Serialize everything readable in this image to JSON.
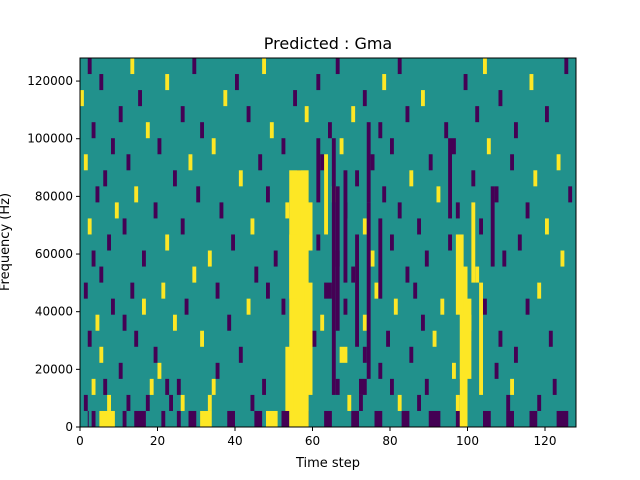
{
  "chart_data": {
    "type": "heatmap",
    "title": "Predicted : Gma",
    "xlabel": "Time step",
    "ylabel": "Frequency (Hz)",
    "xlim": [
      0,
      128
    ],
    "ylim": [
      0,
      128000
    ],
    "x_ticks": [
      0,
      20,
      40,
      60,
      80,
      100,
      120
    ],
    "x_tick_labels": [
      "0",
      "20",
      "40",
      "60",
      "80",
      "100",
      "120"
    ],
    "y_ticks": [
      0,
      20000,
      40000,
      60000,
      80000,
      100000,
      120000
    ],
    "y_tick_labels": [
      "0",
      "20000",
      "40000",
      "60000",
      "80000",
      "100000",
      "120000"
    ],
    "levels": {
      "background": "#21918c",
      "low": "#440154",
      "high": "#fde725"
    },
    "legend": "none",
    "grid": false,
    "cells": [
      [
        2,
        0,
        2,
        1,
        -1
      ],
      [
        3,
        0,
        4,
        1,
        -1
      ],
      [
        5,
        0,
        9,
        1,
        1
      ],
      [
        11,
        0,
        12,
        1,
        -1
      ],
      [
        14,
        0,
        17,
        1,
        -1
      ],
      [
        21,
        0,
        22,
        1,
        -1
      ],
      [
        25,
        0,
        26,
        1,
        -1
      ],
      [
        28,
        0,
        30,
        1,
        -1
      ],
      [
        31,
        0,
        34,
        1,
        1
      ],
      [
        38,
        0,
        40,
        1,
        -1
      ],
      [
        45,
        0,
        47,
        1,
        -1
      ],
      [
        48,
        0,
        51,
        1,
        1
      ],
      [
        52,
        0,
        54,
        1,
        -1
      ],
      [
        57,
        0,
        59,
        1,
        -1
      ],
      [
        63,
        0,
        65,
        1,
        -1
      ],
      [
        70,
        0,
        72,
        1,
        -1
      ],
      [
        76,
        0,
        78,
        1,
        -1
      ],
      [
        83,
        0,
        85,
        1,
        -1
      ],
      [
        90,
        0,
        93,
        1,
        -1
      ],
      [
        97,
        0,
        99,
        1,
        -1
      ],
      [
        104,
        0,
        106,
        1,
        -1
      ],
      [
        110,
        0,
        112,
        1,
        -1
      ],
      [
        116,
        0,
        118,
        1,
        -1
      ],
      [
        123,
        0,
        126,
        1,
        -1
      ],
      [
        1,
        1,
        2,
        2,
        -1
      ],
      [
        7,
        1,
        8,
        2,
        1
      ],
      [
        12,
        1,
        13,
        2,
        -1
      ],
      [
        17,
        1,
        18,
        2,
        -1
      ],
      [
        23,
        1,
        24,
        2,
        -1
      ],
      [
        26,
        1,
        27,
        2,
        1
      ],
      [
        33,
        1,
        34,
        2,
        1
      ],
      [
        44,
        1,
        45,
        2,
        -1
      ],
      [
        69,
        1,
        70,
        2,
        1
      ],
      [
        72,
        1,
        73,
        2,
        -1
      ],
      [
        82,
        1,
        83,
        2,
        1
      ],
      [
        87,
        1,
        88,
        2,
        -1
      ],
      [
        97,
        1,
        98,
        2,
        1
      ],
      [
        110,
        1,
        111,
        2,
        -1
      ],
      [
        118,
        1,
        119,
        2,
        -1
      ],
      [
        3,
        2,
        4,
        3,
        1
      ],
      [
        6,
        2,
        7,
        3,
        -1
      ],
      [
        18,
        2,
        19,
        3,
        1
      ],
      [
        22,
        2,
        23,
        3,
        -1
      ],
      [
        25,
        2,
        26,
        3,
        -1
      ],
      [
        34,
        2,
        35,
        3,
        1
      ],
      [
        47,
        2,
        48,
        3,
        -1
      ],
      [
        66,
        2,
        67,
        3,
        -1
      ],
      [
        72,
        2,
        74,
        3,
        -1
      ],
      [
        80,
        2,
        81,
        3,
        -1
      ],
      [
        89,
        2,
        90,
        3,
        -1
      ],
      [
        98,
        2,
        99,
        3,
        -1
      ],
      [
        111,
        2,
        112,
        3,
        1
      ],
      [
        122,
        2,
        123,
        3,
        -1
      ],
      [
        10,
        3,
        11,
        4,
        -1
      ],
      [
        20,
        3,
        21,
        4,
        1
      ],
      [
        35,
        3,
        36,
        4,
        -1
      ],
      [
        56,
        3,
        57,
        4,
        1
      ],
      [
        77,
        3,
        78,
        4,
        -1
      ],
      [
        96,
        3,
        97,
        4,
        1
      ],
      [
        107,
        3,
        108,
        4,
        -1
      ],
      [
        5,
        4,
        6,
        5,
        1
      ],
      [
        19,
        4,
        20,
        5,
        -1
      ],
      [
        41,
        4,
        42,
        5,
        -1
      ],
      [
        56,
        4,
        57,
        5,
        -1
      ],
      [
        67,
        4,
        69,
        5,
        1
      ],
      [
        73,
        4,
        74,
        5,
        -1
      ],
      [
        85,
        4,
        86,
        5,
        -1
      ],
      [
        112,
        4,
        113,
        5,
        -1
      ],
      [
        2,
        5,
        3,
        6,
        -1
      ],
      [
        14,
        5,
        15,
        6,
        -1
      ],
      [
        31,
        5,
        32,
        6,
        1
      ],
      [
        60,
        5,
        61,
        6,
        -1
      ],
      [
        79,
        5,
        80,
        6,
        -1
      ],
      [
        91,
        5,
        92,
        6,
        1
      ],
      [
        108,
        5,
        109,
        6,
        -1
      ],
      [
        121,
        5,
        122,
        6,
        -1
      ],
      [
        4,
        6,
        5,
        7,
        1
      ],
      [
        11,
        6,
        12,
        7,
        -1
      ],
      [
        24,
        6,
        25,
        7,
        1
      ],
      [
        38,
        6,
        39,
        7,
        -1
      ],
      [
        62,
        6,
        63,
        7,
        1
      ],
      [
        73,
        6,
        74,
        7,
        1
      ],
      [
        88,
        6,
        89,
        7,
        -1
      ],
      [
        100,
        6,
        101,
        7,
        1
      ],
      [
        8,
        7,
        9,
        8,
        -1
      ],
      [
        16,
        7,
        17,
        8,
        1
      ],
      [
        27,
        7,
        28,
        8,
        -1
      ],
      [
        43,
        7,
        44,
        8,
        1
      ],
      [
        52,
        7,
        53,
        8,
        -1
      ],
      [
        68,
        7,
        69,
        8,
        -1
      ],
      [
        81,
        7,
        82,
        8,
        1
      ],
      [
        93,
        7,
        94,
        8,
        1
      ],
      [
        104,
        7,
        105,
        8,
        -1
      ],
      [
        115,
        7,
        116,
        8,
        -1
      ],
      [
        1,
        8,
        2,
        9,
        -1
      ],
      [
        13,
        8,
        14,
        9,
        -1
      ],
      [
        21,
        8,
        22,
        9,
        1
      ],
      [
        35,
        8,
        36,
        9,
        -1
      ],
      [
        48,
        8,
        49,
        9,
        -1
      ],
      [
        63,
        8,
        65,
        9,
        -1
      ],
      [
        76,
        8,
        77,
        9,
        1
      ],
      [
        86,
        8,
        87,
        9,
        -1
      ],
      [
        99,
        8,
        100,
        9,
        -1
      ],
      [
        118,
        8,
        119,
        9,
        1
      ],
      [
        5,
        9,
        6,
        10,
        -1
      ],
      [
        29,
        9,
        30,
        10,
        1
      ],
      [
        45,
        9,
        46,
        10,
        -1
      ],
      [
        57,
        9,
        58,
        10,
        1
      ],
      [
        70,
        9,
        71,
        10,
        -1
      ],
      [
        84,
        9,
        85,
        10,
        -1
      ],
      [
        102,
        9,
        103,
        10,
        1
      ],
      [
        3,
        10,
        4,
        11,
        -1
      ],
      [
        16,
        10,
        17,
        11,
        -1
      ],
      [
        33,
        10,
        34,
        11,
        1
      ],
      [
        50,
        10,
        51,
        11,
        -1
      ],
      [
        66,
        10,
        67,
        11,
        -1
      ],
      [
        75,
        10,
        76,
        11,
        1
      ],
      [
        89,
        10,
        90,
        11,
        -1
      ],
      [
        109,
        10,
        110,
        11,
        -1
      ],
      [
        124,
        10,
        125,
        11,
        1
      ],
      [
        7,
        11,
        8,
        12,
        -1
      ],
      [
        22,
        11,
        23,
        12,
        1
      ],
      [
        39,
        11,
        40,
        12,
        -1
      ],
      [
        61,
        11,
        62,
        12,
        -1
      ],
      [
        80,
        11,
        81,
        12,
        -1
      ],
      [
        95,
        11,
        96,
        12,
        -1
      ],
      [
        113,
        11,
        114,
        12,
        -1
      ],
      [
        2,
        12,
        3,
        13,
        1
      ],
      [
        11,
        12,
        12,
        13,
        -1
      ],
      [
        26,
        12,
        27,
        13,
        -1
      ],
      [
        44,
        12,
        45,
        13,
        1
      ],
      [
        59,
        12,
        60,
        13,
        -1
      ],
      [
        73,
        12,
        74,
        13,
        1
      ],
      [
        87,
        12,
        88,
        13,
        -1
      ],
      [
        103,
        12,
        104,
        13,
        -1
      ],
      [
        120,
        12,
        121,
        13,
        1
      ],
      [
        9,
        13,
        10,
        14,
        1
      ],
      [
        19,
        13,
        20,
        14,
        -1
      ],
      [
        36,
        13,
        37,
        14,
        -1
      ],
      [
        53,
        13,
        54,
        14,
        1
      ],
      [
        68,
        13,
        69,
        14,
        -1
      ],
      [
        82,
        13,
        83,
        14,
        -1
      ],
      [
        97,
        13,
        98,
        14,
        -1
      ],
      [
        115,
        13,
        116,
        14,
        -1
      ],
      [
        4,
        14,
        5,
        15,
        -1
      ],
      [
        14,
        14,
        15,
        15,
        1
      ],
      [
        30,
        14,
        31,
        15,
        -1
      ],
      [
        48,
        14,
        49,
        15,
        -1
      ],
      [
        65,
        14,
        66,
        15,
        1
      ],
      [
        78,
        14,
        79,
        15,
        -1
      ],
      [
        92,
        14,
        93,
        15,
        1
      ],
      [
        107,
        14,
        108,
        15,
        -1
      ],
      [
        126,
        14,
        127,
        15,
        -1
      ],
      [
        6,
        15,
        7,
        16,
        -1
      ],
      [
        24,
        15,
        25,
        16,
        -1
      ],
      [
        41,
        15,
        42,
        16,
        1
      ],
      [
        56,
        15,
        57,
        16,
        -1
      ],
      [
        71,
        15,
        72,
        16,
        -1
      ],
      [
        85,
        15,
        86,
        16,
        1
      ],
      [
        101,
        15,
        102,
        16,
        -1
      ],
      [
        117,
        15,
        118,
        16,
        1
      ],
      [
        1,
        16,
        2,
        17,
        1
      ],
      [
        12,
        16,
        13,
        17,
        -1
      ],
      [
        28,
        16,
        29,
        17,
        1
      ],
      [
        46,
        16,
        47,
        17,
        -1
      ],
      [
        62,
        16,
        63,
        17,
        -1
      ],
      [
        75,
        16,
        76,
        17,
        -1
      ],
      [
        90,
        16,
        91,
        17,
        -1
      ],
      [
        111,
        16,
        112,
        17,
        -1
      ],
      [
        123,
        16,
        124,
        17,
        1
      ],
      [
        8,
        17,
        9,
        18,
        -1
      ],
      [
        20,
        17,
        21,
        18,
        -1
      ],
      [
        34,
        17,
        35,
        18,
        1
      ],
      [
        52,
        17,
        53,
        18,
        -1
      ],
      [
        67,
        17,
        68,
        18,
        1
      ],
      [
        80,
        17,
        81,
        18,
        -1
      ],
      [
        96,
        17,
        97,
        18,
        -1
      ],
      [
        105,
        17,
        106,
        18,
        1
      ],
      [
        3,
        18,
        4,
        19,
        -1
      ],
      [
        17,
        18,
        18,
        19,
        1
      ],
      [
        31,
        18,
        32,
        19,
        -1
      ],
      [
        49,
        18,
        50,
        19,
        1
      ],
      [
        64,
        18,
        65,
        19,
        -1
      ],
      [
        77,
        18,
        78,
        19,
        -1
      ],
      [
        94,
        18,
        95,
        19,
        -1
      ],
      [
        112,
        18,
        113,
        19,
        -1
      ],
      [
        10,
        19,
        11,
        20,
        -1
      ],
      [
        26,
        19,
        27,
        20,
        -1
      ],
      [
        43,
        19,
        44,
        20,
        -1
      ],
      [
        58,
        19,
        59,
        20,
        1
      ],
      [
        70,
        19,
        71,
        20,
        1
      ],
      [
        84,
        19,
        85,
        20,
        -1
      ],
      [
        102,
        19,
        103,
        20,
        -1
      ],
      [
        120,
        19,
        121,
        20,
        -1
      ],
      [
        0,
        20,
        1,
        21,
        1
      ],
      [
        15,
        20,
        16,
        21,
        -1
      ],
      [
        37,
        20,
        38,
        21,
        1
      ],
      [
        55,
        20,
        56,
        21,
        -1
      ],
      [
        73,
        20,
        74,
        21,
        -1
      ],
      [
        88,
        20,
        89,
        21,
        1
      ],
      [
        108,
        20,
        109,
        21,
        -1
      ],
      [
        5,
        21,
        6,
        22,
        -1
      ],
      [
        22,
        21,
        23,
        22,
        1
      ],
      [
        40,
        21,
        41,
        22,
        -1
      ],
      [
        61,
        21,
        62,
        22,
        -1
      ],
      [
        78,
        21,
        79,
        22,
        1
      ],
      [
        99,
        21,
        100,
        22,
        -1
      ],
      [
        116,
        21,
        117,
        22,
        1
      ],
      [
        2,
        22,
        3,
        23,
        -1
      ],
      [
        13,
        22,
        14,
        23,
        1
      ],
      [
        29,
        22,
        30,
        23,
        -1
      ],
      [
        47,
        22,
        48,
        23,
        1
      ],
      [
        66,
        22,
        67,
        23,
        -1
      ],
      [
        82,
        22,
        83,
        23,
        -1
      ],
      [
        104,
        22,
        105,
        23,
        1
      ],
      [
        125,
        22,
        126,
        23,
        -1
      ],
      [
        54,
        0,
        59,
        16,
        1
      ],
      [
        53,
        1,
        55,
        5,
        1
      ],
      [
        58,
        2,
        60,
        9,
        1
      ],
      [
        54,
        8,
        56,
        12,
        1
      ],
      [
        57,
        11,
        60,
        14,
        1
      ],
      [
        65,
        2,
        66,
        18,
        -1
      ],
      [
        66,
        6,
        67,
        15,
        -1
      ],
      [
        68,
        9,
        69,
        16,
        -1
      ],
      [
        71,
        5,
        72,
        12,
        -1
      ],
      [
        74,
        3,
        75,
        14,
        -1
      ],
      [
        77,
        8,
        78,
        13,
        -1
      ],
      [
        98,
        0,
        100,
        10,
        1
      ],
      [
        100,
        3,
        101,
        8,
        1
      ],
      [
        103,
        2,
        104,
        9,
        1
      ],
      [
        97,
        7,
        99,
        12,
        1
      ],
      [
        101,
        9,
        102,
        14,
        1
      ],
      [
        61,
        14,
        62,
        18,
        -1
      ],
      [
        74,
        14,
        75,
        19,
        -1
      ],
      [
        63,
        12,
        64,
        17,
        1
      ],
      [
        95,
        13,
        96,
        18,
        -1
      ],
      [
        106,
        10,
        107,
        15,
        -1
      ]
    ]
  }
}
